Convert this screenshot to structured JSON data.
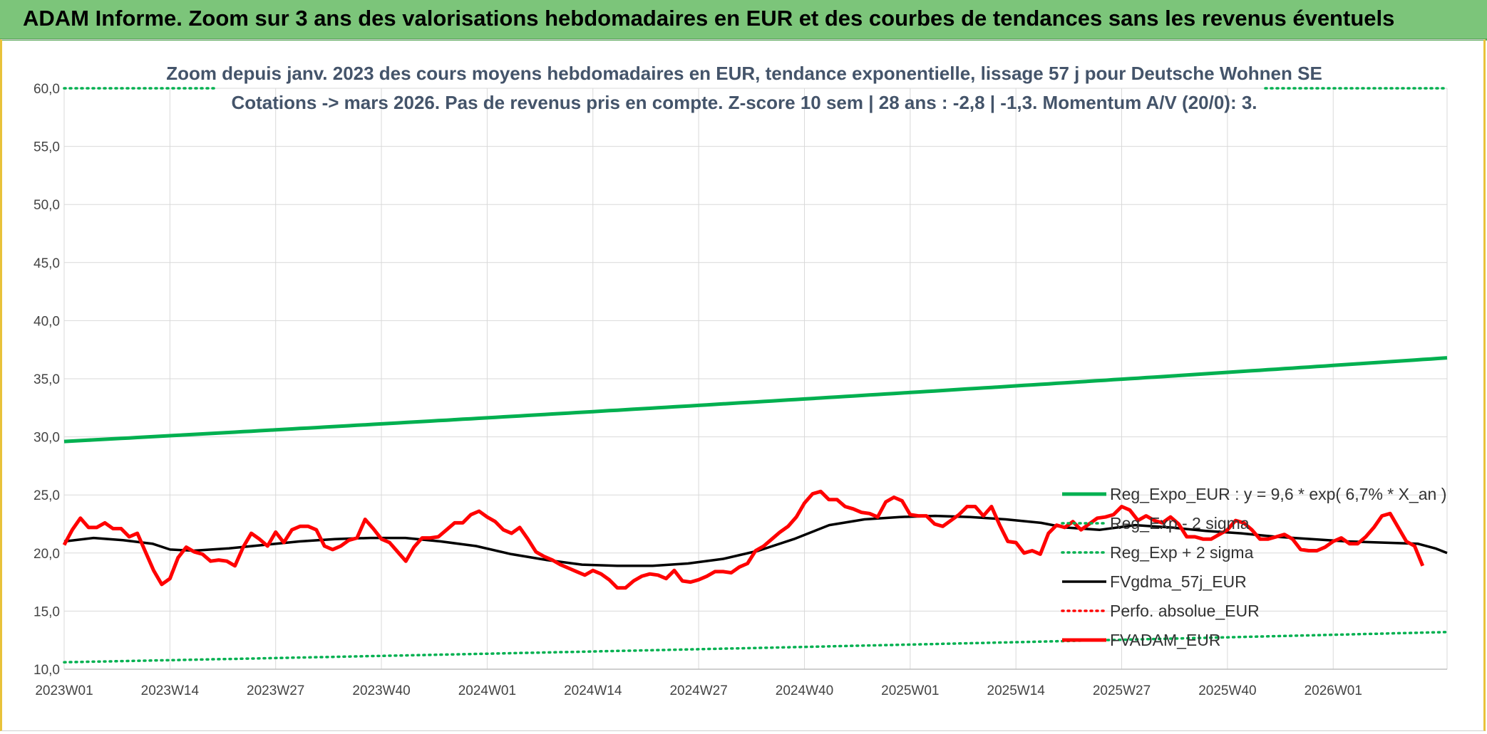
{
  "header": {
    "banner_title": "ADAM Informe. Zoom sur 3 ans des valorisations hebdomadaires en EUR et des courbes de tendances sans les revenus éventuels"
  },
  "colors": {
    "banner_bg": "#7cc57a",
    "regression": "#00b050",
    "price": "#ff0000",
    "smooth": "#000000"
  },
  "chart_data": {
    "type": "line",
    "title": "Zoom depuis janv. 2023 des cours moyens hebdomadaires en EUR, tendance exponentielle, lissage 57 j pour Deutsche Wohnen SE",
    "subtitle": "Cotations -> mars 2026. Pas de revenus pris en compte. Z-score 10 sem | 28 ans : -2,8 | -1,3. Momentum A/V (20/0): 3.",
    "xlabel": "",
    "ylabel": "",
    "ylim": [
      10,
      60
    ],
    "y_ticks": [
      "10,0",
      "15,0",
      "20,0",
      "25,0",
      "30,0",
      "35,0",
      "40,0",
      "45,0",
      "50,0",
      "55,0",
      "60,0"
    ],
    "x_ticks": [
      "2023W01",
      "2023W14",
      "2023W27",
      "2023W40",
      "2024W01",
      "2024W14",
      "2024W27",
      "2024W40",
      "2025W01",
      "2025W14",
      "2025W27",
      "2025W40",
      "2026W01"
    ],
    "x_tick_index": [
      0,
      13,
      26,
      39,
      52,
      65,
      78,
      91,
      104,
      117,
      130,
      143,
      156
    ],
    "x_count": 170,
    "legend_position": "right",
    "series": [
      {
        "name": "Reg_Expo_EUR : y = 9,6 * exp( 6,7% *  X_an )",
        "style": "thick-solid",
        "color": "#00b050",
        "exp_start": 29.6,
        "exp_end": 36.8
      },
      {
        "name": "Reg_Exp - 2 sigma",
        "style": "dotted",
        "color": "#00b050",
        "exp_start": 10.6,
        "exp_end": 13.2
      },
      {
        "name": "Reg_Exp + 2 sigma",
        "style": "dotted",
        "color": "#00b050",
        "exp_start": 60.0,
        "exp_end": 60.0
      },
      {
        "name": "FVgdma_57j_EUR",
        "style": "solid",
        "color": "#000000",
        "points": [
          [
            0,
            21.0
          ],
          [
            5,
            21.3
          ],
          [
            10,
            21.1
          ],
          [
            15,
            20.8
          ],
          [
            18,
            20.3
          ],
          [
            22,
            20.2
          ],
          [
            28,
            20.4
          ],
          [
            34,
            20.7
          ],
          [
            40,
            21.0
          ],
          [
            46,
            21.2
          ],
          [
            52,
            21.3
          ],
          [
            58,
            21.3
          ],
          [
            64,
            21.0
          ],
          [
            70,
            20.6
          ],
          [
            76,
            19.9
          ],
          [
            82,
            19.4
          ],
          [
            88,
            19.0
          ],
          [
            94,
            18.9
          ],
          [
            100,
            18.9
          ],
          [
            106,
            19.1
          ],
          [
            112,
            19.5
          ],
          [
            118,
            20.2
          ],
          [
            124,
            21.2
          ],
          [
            130,
            22.4
          ],
          [
            136,
            22.9
          ],
          [
            142,
            23.1
          ],
          [
            148,
            23.2
          ],
          [
            154,
            23.1
          ],
          [
            160,
            22.9
          ],
          [
            166,
            22.6
          ],
          [
            170,
            22.2
          ],
          [
            176,
            22.0
          ],
          [
            182,
            22.4
          ],
          [
            188,
            22.2
          ],
          [
            194,
            21.9
          ],
          [
            200,
            21.7
          ],
          [
            206,
            21.4
          ],
          [
            212,
            21.2
          ],
          [
            218,
            21.0
          ],
          [
            224,
            20.9
          ],
          [
            230,
            20.8
          ],
          [
            233,
            20.4
          ],
          [
            235,
            20.0
          ]
        ]
      },
      {
        "name": "Perfo. absolue_EUR",
        "style": "dotted",
        "color": "#ff0000",
        "points": []
      },
      {
        "name": "FVADAM_EUR",
        "style": "thick-solid",
        "color": "#ff0000",
        "values": [
          20.7,
          22.0,
          23.0,
          22.2,
          22.2,
          22.6,
          22.1,
          22.1,
          21.4,
          21.7,
          20.1,
          18.5,
          17.3,
          17.8,
          19.6,
          20.5,
          20.1,
          19.9,
          19.3,
          19.4,
          19.3,
          18.9,
          20.5,
          21.7,
          21.2,
          20.6,
          21.8,
          20.9,
          22.0,
          22.3,
          22.3,
          22.0,
          20.6,
          20.3,
          20.6,
          21.1,
          21.3,
          22.9,
          22.1,
          21.2,
          20.9,
          20.1,
          19.3,
          20.5,
          21.3,
          21.3,
          21.4,
          22.0,
          22.6,
          22.6,
          23.3,
          23.6,
          23.1,
          22.7,
          22.0,
          21.7,
          22.2,
          21.2,
          20.1,
          19.7,
          19.4,
          19.0,
          18.7,
          18.4,
          18.1,
          18.5,
          18.2,
          17.7,
          17.0,
          17.0,
          17.6,
          18.0,
          18.2,
          18.1,
          17.8,
          18.5,
          17.6,
          17.5,
          17.7,
          18.0,
          18.4,
          18.4,
          18.3,
          18.8,
          19.1,
          20.2,
          20.6,
          21.2,
          21.8,
          22.3,
          23.1,
          24.3,
          25.1,
          25.3,
          24.6,
          24.6,
          24.0,
          23.8,
          23.5,
          23.4,
          23.1,
          24.4,
          24.8,
          24.5,
          23.3,
          23.2,
          23.2,
          22.5,
          22.3,
          22.8,
          23.3,
          24.0,
          24.0,
          23.2,
          24.0,
          22.4,
          21.0,
          20.9,
          20.0,
          20.2,
          19.9,
          21.7,
          22.4,
          22.2,
          22.7,
          22.0,
          22.5,
          23.0,
          23.1,
          23.3,
          24.0,
          23.7,
          22.8,
          23.2,
          22.8,
          22.6,
          23.1,
          22.5,
          21.4,
          21.4,
          21.2,
          21.2,
          21.6,
          22.0,
          22.8,
          22.6,
          22.0,
          21.2,
          21.2,
          21.4,
          21.6,
          21.2,
          20.3,
          20.2,
          20.2,
          20.5,
          21.0,
          21.3,
          20.8,
          20.8,
          21.4,
          22.2,
          23.2,
          23.4,
          22.2,
          21.0,
          20.6,
          18.9
        ]
      }
    ]
  }
}
